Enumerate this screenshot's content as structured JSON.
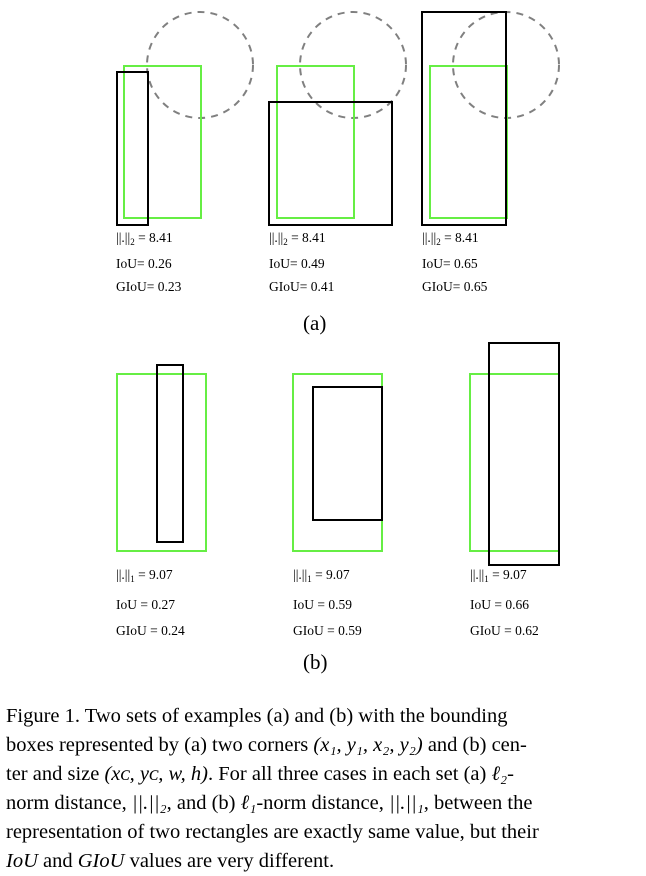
{
  "panel_a": {
    "label": "(a)",
    "cases": [
      {
        "norm": "||.||",
        "norm_sub": "2",
        "norm_value": "= 8.41",
        "iou": "IoU= 0.26",
        "giou": "GIoU= 0.23"
      },
      {
        "norm": "||.||",
        "norm_sub": "2",
        "norm_value": "= 8.41",
        "iou": "IoU= 0.49",
        "giou": "GIoU= 0.41"
      },
      {
        "norm": "||.||",
        "norm_sub": "2",
        "norm_value": "= 8.41",
        "iou": "IoU= 0.65",
        "giou": "GIoU= 0.65"
      }
    ]
  },
  "panel_b": {
    "label": "(b)",
    "cases": [
      {
        "norm": "||.||",
        "norm_sub": "1",
        "norm_value": "= 9.07",
        "iou": "IoU = 0.27",
        "giou": "GIoU = 0.24"
      },
      {
        "norm": "||.||",
        "norm_sub": "1",
        "norm_value": "= 9.07",
        "iou": "IoU = 0.59",
        "giou": "GIoU = 0.59"
      },
      {
        "norm": "||.||",
        "norm_sub": "1",
        "norm_value": "= 9.07",
        "iou": "IoU = 0.66",
        "giou": "GIoU = 0.62"
      }
    ]
  },
  "colors": {
    "ground_truth": "#66ee44",
    "prediction": "#000000",
    "circle": "#808080"
  },
  "caption": {
    "line1": "Figure 1.  Two sets of examples (a) and (b) with the bounding",
    "line2_a": "boxes represented by (a) two corners ",
    "line2_math": "(x₁, y₁, x₂, y₂)",
    "line2_b": " and (b) cen-",
    "line3_a": "ter and size ",
    "line3_math": "(xᴄ, yᴄ, w, h)",
    "line3_b": ".  For all three cases in each set (a) ",
    "line3_math2": "ℓ₂",
    "line3_c": "-",
    "line4_a": "norm distance, ",
    "line4_math": "||.||₂",
    "line4_b": ", and (b) ",
    "line4_math2": "ℓ₁",
    "line4_c": "-norm distance, ",
    "line4_math3": "||.||₁",
    "line4_d": ", between the",
    "line5": "representation of two rectangles are exactly same value, but their",
    "line6_math1": "IoU",
    "line6_a": " and ",
    "line6_math2": "GIoU",
    "line6_b": " values are very different."
  }
}
